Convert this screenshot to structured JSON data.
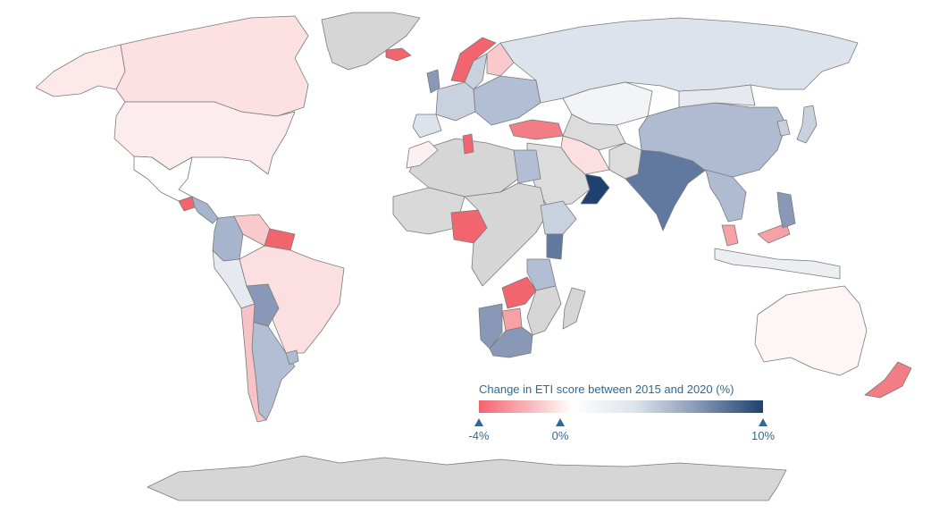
{
  "legend": {
    "title": "Change in ETI score between 2015 and 2020 (%)",
    "min_label": "-4%",
    "mid_label": "0%",
    "max_label": "10%",
    "min_value": -4,
    "max_value": 10,
    "colors": {
      "negative": "#f2646e",
      "zero": "#ffffff",
      "positive": "#1d4270",
      "no_data": "#d6d6d6"
    }
  },
  "regions": [
    {
      "name": "Greenland",
      "color": "#d6d6d6"
    },
    {
      "name": "Canada",
      "color": "#fde1e2"
    },
    {
      "name": "Alaska",
      "color": "#fde9ea"
    },
    {
      "name": "United States",
      "color": "#fdeced"
    },
    {
      "name": "Mexico",
      "color": "#ffffff"
    },
    {
      "name": "Guatemala",
      "color": "#f2646e"
    },
    {
      "name": "Colombia",
      "color": "#a6b4cc"
    },
    {
      "name": "Venezuela",
      "color": "#f9c9cc"
    },
    {
      "name": "Peru",
      "color": "#e6eaf0"
    },
    {
      "name": "Brazil",
      "color": "#fcdfe1"
    },
    {
      "name": "Bolivia",
      "color": "#8898b6"
    },
    {
      "name": "Chile",
      "color": "#f7c3c7"
    },
    {
      "name": "Argentina",
      "color": "#b2bed3"
    },
    {
      "name": "Uruguay",
      "color": "#aebbd0"
    },
    {
      "name": "Iceland",
      "color": "#f2646e"
    },
    {
      "name": "Norway",
      "color": "#f2646e"
    },
    {
      "name": "Sweden",
      "color": "#c9d1df"
    },
    {
      "name": "Finland",
      "color": "#f9c9cc"
    },
    {
      "name": "United Kingdom",
      "color": "#8898b6"
    },
    {
      "name": "Western Europe",
      "color": "#c9d1df"
    },
    {
      "name": "Iberia",
      "color": "#dde3ec"
    },
    {
      "name": "Eastern Europe",
      "color": "#b2bed3"
    },
    {
      "name": "Russia",
      "color": "#dde3ec"
    },
    {
      "name": "Kazakhstan",
      "color": "#f3f4f7"
    },
    {
      "name": "Turkey",
      "color": "#f27d85"
    },
    {
      "name": "Iran",
      "color": "#fcdfe1"
    },
    {
      "name": "Saudi Arabia",
      "color": "#dcdcdc"
    },
    {
      "name": "Oman",
      "color": "#1d4270"
    },
    {
      "name": "India",
      "color": "#62799f"
    },
    {
      "name": "China",
      "color": "#aebbd0"
    },
    {
      "name": "Mongolia",
      "color": "#e6eaf0"
    },
    {
      "name": "Southeast Asia",
      "color": "#aebbd0"
    },
    {
      "name": "Indonesia",
      "color": "#eceef2"
    },
    {
      "name": "Philippines",
      "color": "#8898b6"
    },
    {
      "name": "Malaysia",
      "color": "#f7a1a6"
    },
    {
      "name": "Japan",
      "color": "#c9d1df"
    },
    {
      "name": "Korea",
      "color": "#8898b6"
    },
    {
      "name": "Australia",
      "color": "#fdf6f5"
    },
    {
      "name": "New Zealand",
      "color": "#f27d85"
    },
    {
      "name": "North Africa",
      "color": "#d6d6d6"
    },
    {
      "name": "Morocco",
      "color": "#fdf0f0"
    },
    {
      "name": "Tunisia",
      "color": "#f2646e"
    },
    {
      "name": "Egypt",
      "color": "#b2bed3"
    },
    {
      "name": "West Africa",
      "color": "#d9d9d9"
    },
    {
      "name": "Nigeria",
      "color": "#f2646e"
    },
    {
      "name": "Central Africa",
      "color": "#d6d6d6"
    },
    {
      "name": "Ethiopia",
      "color": "#c9d1df"
    },
    {
      "name": "Kenya",
      "color": "#62799f"
    },
    {
      "name": "Tanzania",
      "color": "#b2bed3"
    },
    {
      "name": "Zambia",
      "color": "#f2646e"
    },
    {
      "name": "Zimbabwe",
      "color": "#f7a1a6"
    },
    {
      "name": "Namibia",
      "color": "#8898b6"
    },
    {
      "name": "South Africa",
      "color": "#8898b6"
    },
    {
      "name": "Madagascar",
      "color": "#d6d6d6"
    },
    {
      "name": "Antarctica",
      "color": "#d6d6d6"
    }
  ]
}
